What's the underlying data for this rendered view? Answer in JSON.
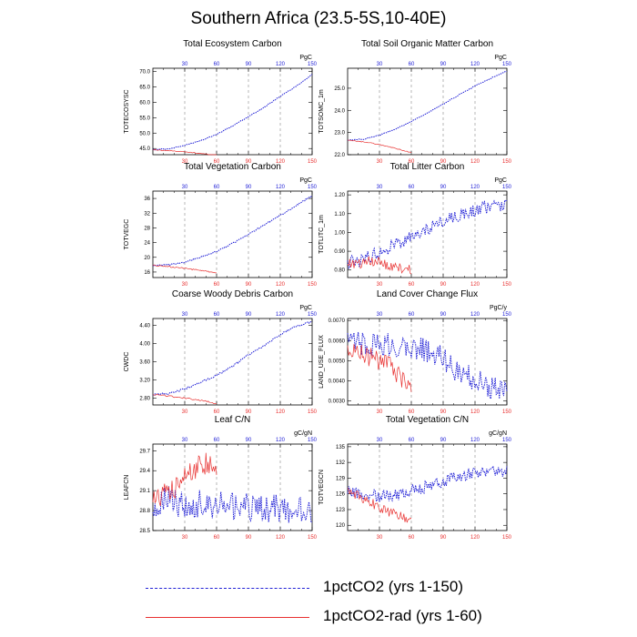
{
  "title": "Southern Africa (23.5-5S,10-40E)",
  "colors": {
    "series1": "#1f1fd6",
    "series2": "#e8302f",
    "grid": "#888888",
    "axis": "#000000"
  },
  "legend": [
    {
      "label": "1pctCO2 (yrs 1-150)",
      "color": "#1f1fd6",
      "style": "dashed"
    },
    {
      "label": "1pctCO2-rad (yrs 1-60)",
      "color": "#e8302f",
      "style": "solid"
    }
  ],
  "chart_data": [
    {
      "type": "line",
      "title": "Total Ecosystem Carbon",
      "ylabel": "TOTECOSYSC",
      "units": "PgC",
      "xlim": [
        0,
        150
      ],
      "ylim": [
        43,
        71
      ],
      "yticks": [
        45,
        50,
        55,
        60,
        65,
        70
      ],
      "yticklabels": [
        "45.0",
        "50.0",
        "55.0",
        "60.0",
        "65.0",
        "70.0"
      ],
      "series": [
        {
          "color": "#1f1fd6",
          "x": [
            0,
            15,
            30,
            45,
            60,
            75,
            90,
            105,
            120,
            135,
            150
          ],
          "y": [
            44.6,
            44.9,
            46.0,
            47.6,
            49.6,
            52.3,
            55.3,
            58.4,
            61.9,
            65.2,
            69.0
          ]
        },
        {
          "color": "#e8302f",
          "x": [
            0,
            10,
            20,
            30,
            40,
            50,
            60
          ],
          "y": [
            44.6,
            44.4,
            44.2,
            43.9,
            43.6,
            43.2,
            42.8
          ]
        }
      ]
    },
    {
      "type": "line",
      "title": "Total Soil Organic Matter Carbon",
      "ylabel": "TOTSOMC_1m",
      "units": "PgC",
      "xlim": [
        0,
        150
      ],
      "ylim": [
        22.0,
        25.9
      ],
      "yticks": [
        22.0,
        23.0,
        24.0,
        25.0
      ],
      "yticklabels": [
        "22.0",
        "23.0",
        "24.0",
        "25.0"
      ],
      "series": [
        {
          "color": "#1f1fd6",
          "x": [
            0,
            15,
            30,
            45,
            60,
            75,
            90,
            105,
            120,
            135,
            150
          ],
          "y": [
            22.65,
            22.7,
            22.88,
            23.15,
            23.5,
            23.88,
            24.28,
            24.7,
            25.1,
            25.45,
            25.78
          ]
        },
        {
          "color": "#e8302f",
          "x": [
            0,
            10,
            20,
            30,
            40,
            50,
            60
          ],
          "y": [
            22.65,
            22.6,
            22.55,
            22.45,
            22.35,
            22.22,
            22.1
          ]
        }
      ]
    },
    {
      "type": "line",
      "title": "Total Vegetation Carbon",
      "ylabel": "TOTVEGC",
      "units": "PgC",
      "xlim": [
        0,
        150
      ],
      "ylim": [
        14.5,
        38
      ],
      "yticks": [
        16,
        20,
        24,
        28,
        32,
        36
      ],
      "yticklabels": [
        "16",
        "20",
        "24",
        "28",
        "32",
        "36"
      ],
      "series": [
        {
          "color": "#1f1fd6",
          "x": [
            0,
            15,
            30,
            45,
            60,
            75,
            90,
            105,
            120,
            135,
            150
          ],
          "y": [
            17.8,
            17.9,
            18.7,
            20.0,
            21.6,
            23.8,
            26.2,
            28.9,
            31.4,
            34.0,
            36.8
          ]
        },
        {
          "color": "#e8302f",
          "x": [
            0,
            10,
            20,
            30,
            40,
            50,
            60
          ],
          "y": [
            17.8,
            17.6,
            17.3,
            17.0,
            16.6,
            16.2,
            15.8
          ]
        }
      ]
    },
    {
      "type": "line",
      "title": "Total Litter Carbon",
      "ylabel": "TOTLITC_1m",
      "units": "PgC",
      "xlim": [
        0,
        150
      ],
      "ylim": [
        0.76,
        1.22
      ],
      "yticks": [
        0.8,
        0.9,
        1.0,
        1.1,
        1.2
      ],
      "yticklabels": [
        "0.80",
        "0.90",
        "1.00",
        "1.10",
        "1.20"
      ],
      "series": [
        {
          "color": "#1f1fd6",
          "x": [
            0,
            15,
            30,
            45,
            60,
            75,
            90,
            105,
            120,
            135,
            150
          ],
          "y": [
            0.84,
            0.86,
            0.89,
            0.94,
            0.97,
            1.02,
            1.06,
            1.09,
            1.12,
            1.14,
            1.15
          ]
        },
        {
          "color": "#e8302f",
          "x": [
            0,
            10,
            20,
            30,
            40,
            50,
            60
          ],
          "y": [
            0.84,
            0.83,
            0.85,
            0.84,
            0.82,
            0.81,
            0.8
          ]
        }
      ]
    },
    {
      "type": "line",
      "title": "Coarse Woody Debris Carbon",
      "ylabel": "CWDC",
      "units": "PgC",
      "xlim": [
        0,
        150
      ],
      "ylim": [
        2.65,
        4.55
      ],
      "yticks": [
        2.8,
        3.2,
        3.6,
        4.0,
        4.4
      ],
      "yticklabels": [
        "2.80",
        "3.20",
        "3.60",
        "4.00",
        "4.40"
      ],
      "series": [
        {
          "color": "#1f1fd6",
          "x": [
            0,
            15,
            30,
            45,
            60,
            75,
            90,
            105,
            120,
            135,
            150
          ],
          "y": [
            2.88,
            2.9,
            3.0,
            3.15,
            3.3,
            3.5,
            3.75,
            3.95,
            4.2,
            4.38,
            4.48
          ]
        },
        {
          "color": "#e8302f",
          "x": [
            0,
            10,
            20,
            30,
            40,
            50,
            60
          ],
          "y": [
            2.88,
            2.86,
            2.83,
            2.8,
            2.77,
            2.73,
            2.68
          ]
        }
      ]
    },
    {
      "type": "line",
      "title": "Land Cover Change Flux",
      "ylabel": "LAND_USE_FLUX",
      "units": "PgC/y",
      "xlim": [
        0,
        150
      ],
      "ylim": [
        0.0028,
        0.0071
      ],
      "yticks": [
        0.003,
        0.004,
        0.005,
        0.006,
        0.007
      ],
      "yticklabels": [
        "0.0030",
        "0.0040",
        "0.0050",
        "0.0060",
        "0.0070"
      ],
      "series": [
        {
          "color": "#1f1fd6",
          "x": [
            0,
            15,
            30,
            45,
            60,
            75,
            90,
            105,
            120,
            135,
            150
          ],
          "y": [
            0.0058,
            0.0059,
            0.0058,
            0.0058,
            0.0057,
            0.0055,
            0.0051,
            0.0044,
            0.0041,
            0.0037,
            0.0033
          ]
        },
        {
          "color": "#e8302f",
          "x": [
            0,
            10,
            20,
            30,
            40,
            50,
            60
          ],
          "y": [
            0.0055,
            0.0054,
            0.0052,
            0.005,
            0.0047,
            0.0042,
            0.0036
          ]
        }
      ]
    },
    {
      "type": "line",
      "title": "Leaf C/N",
      "ylabel": "LEAFCN",
      "units": "gC/gN",
      "xlim": [
        0,
        150
      ],
      "ylim": [
        28.5,
        29.8
      ],
      "yticks": [
        28.5,
        28.8,
        29.1,
        29.4,
        29.7
      ],
      "yticklabels": [
        "28.5",
        "28.8",
        "29.1",
        "29.4",
        "29.7"
      ],
      "series": [
        {
          "color": "#1f1fd6",
          "x": [
            0,
            15,
            30,
            45,
            60,
            75,
            90,
            105,
            120,
            135,
            150
          ],
          "y": [
            28.9,
            28.95,
            28.9,
            28.9,
            28.88,
            28.85,
            28.85,
            28.85,
            28.83,
            28.82,
            28.8
          ]
        },
        {
          "color": "#e8302f",
          "x": [
            0,
            10,
            20,
            30,
            40,
            50,
            60
          ],
          "y": [
            29.0,
            29.05,
            29.1,
            29.3,
            29.45,
            29.5,
            29.45
          ]
        }
      ]
    },
    {
      "type": "line",
      "title": "Total Vegetation C/N",
      "ylabel": "TOTVEGCN",
      "units": "gC/gN",
      "xlim": [
        0,
        150
      ],
      "ylim": [
        119,
        135.5
      ],
      "yticks": [
        120,
        123,
        126,
        129,
        132,
        135
      ],
      "yticklabels": [
        "120",
        "123",
        "126",
        "129",
        "132",
        "135"
      ],
      "series": [
        {
          "color": "#1f1fd6",
          "x": [
            0,
            15,
            30,
            45,
            60,
            75,
            90,
            105,
            120,
            135,
            150
          ],
          "y": [
            126.5,
            126.0,
            125.5,
            125.8,
            126.5,
            127.5,
            128.5,
            129.5,
            130.0,
            130.2,
            130.3
          ]
        },
        {
          "color": "#e8302f",
          "x": [
            0,
            10,
            20,
            30,
            40,
            50,
            60
          ],
          "y": [
            127.0,
            125.5,
            124.5,
            123.5,
            122.5,
            122.0,
            120.5
          ]
        }
      ]
    }
  ]
}
